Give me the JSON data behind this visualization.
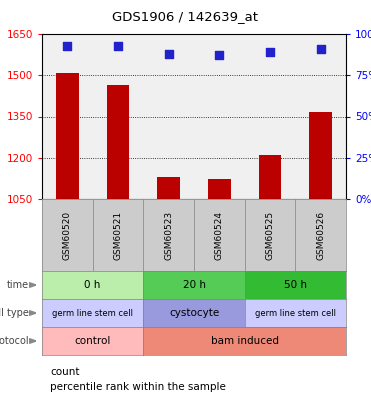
{
  "title": "GDS1906 / 142639_at",
  "samples": [
    "GSM60520",
    "GSM60521",
    "GSM60523",
    "GSM60524",
    "GSM60525",
    "GSM60526"
  ],
  "counts": [
    1508,
    1465,
    1130,
    1123,
    1210,
    1365
  ],
  "percentile_ranks": [
    93,
    93,
    88,
    87,
    89,
    91
  ],
  "ylim_left": [
    1050,
    1650
  ],
  "ylim_right": [
    0,
    100
  ],
  "yticks_left": [
    1050,
    1200,
    1350,
    1500,
    1650
  ],
  "yticks_right": [
    0,
    25,
    50,
    75,
    100
  ],
  "bar_color": "#bb0000",
  "dot_color": "#2222cc",
  "time_labels": [
    "0 h",
    "20 h",
    "50 h"
  ],
  "time_colors": [
    "#bbeeaa",
    "#55cc55",
    "#33bb33"
  ],
  "cell_type_labels": [
    "germ line stem cell",
    "cystocyte",
    "germ line stem cell"
  ],
  "cell_type_colors": [
    "#ccccff",
    "#9999dd",
    "#ccccff"
  ],
  "protocol_labels": [
    "control",
    "bam induced"
  ],
  "protocol_colors": [
    "#ffbbbb",
    "#ee8877"
  ],
  "legend_red": "count",
  "legend_blue": "percentile rank within the sample",
  "sample_box_color": "#cccccc",
  "row_label_color": "#555555"
}
